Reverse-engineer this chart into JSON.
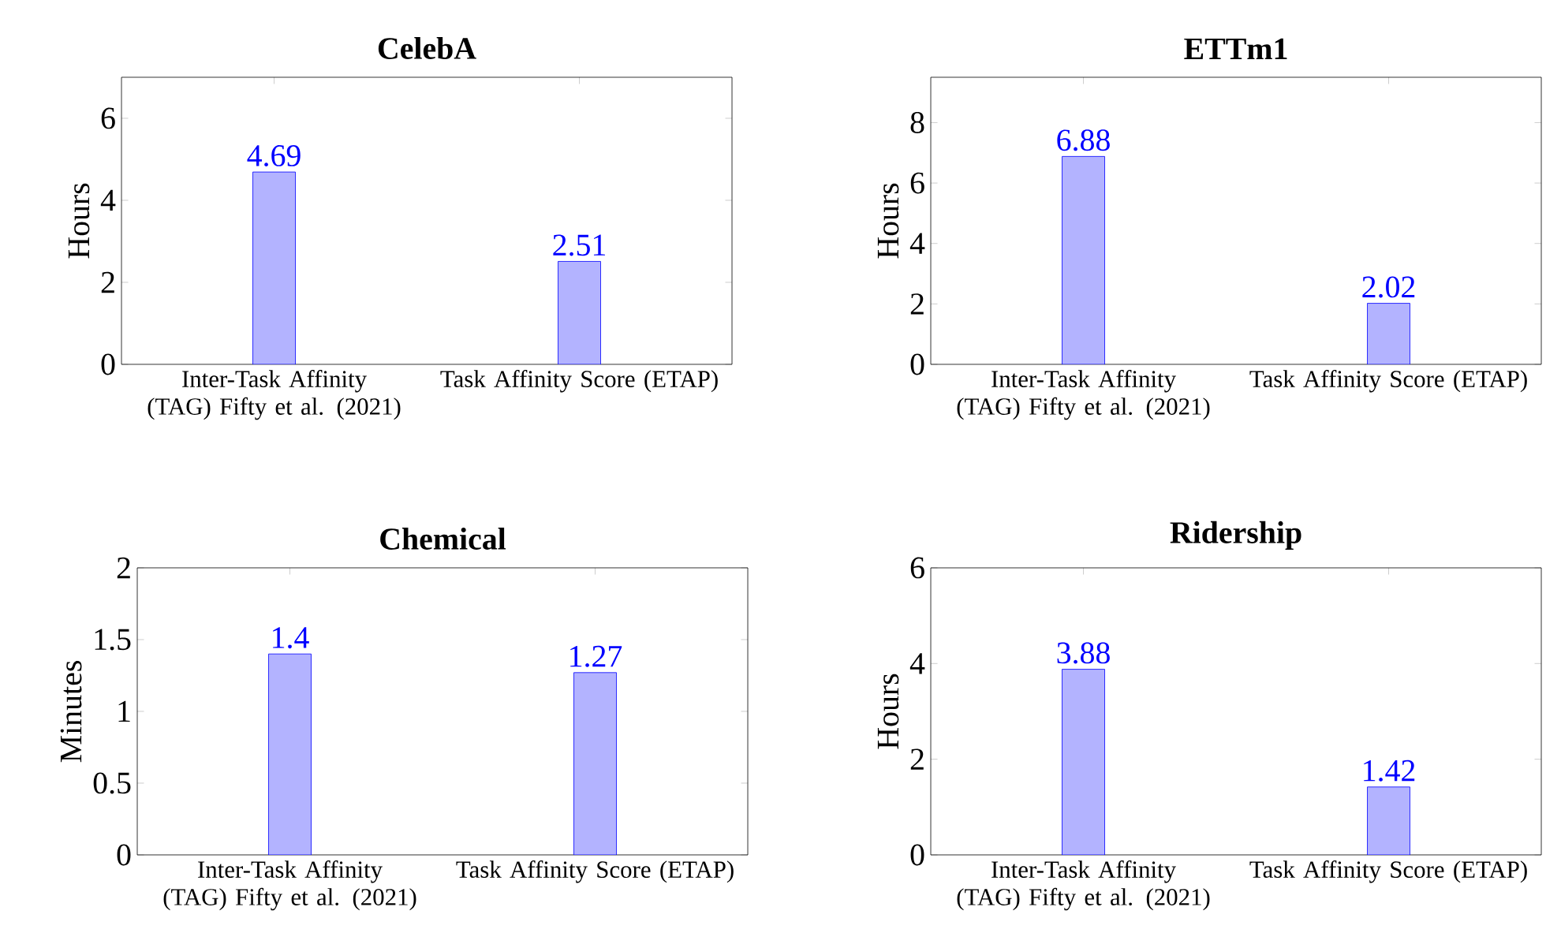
{
  "chart_data": [
    {
      "type": "bar",
      "title": "CelebA",
      "ylabel": "Hours",
      "categories": [
        "Inter-Task Affinity (TAG) Fifty et al. (2021)",
        "Task Affinity Score (ETAP)"
      ],
      "values": [
        4.69,
        2.51
      ],
      "color": "#b3b3ff",
      "ylim": [
        0,
        7
      ],
      "yticks": [
        0,
        2,
        4,
        6
      ],
      "data_labels": true
    },
    {
      "type": "bar",
      "title": "ETTm1",
      "ylabel": "Hours",
      "categories": [
        "Inter-Task Affinity (TAG) Fifty et al. (2021)",
        "Task Affinity Score (ETAP)"
      ],
      "values": [
        6.88,
        2.02
      ],
      "color": "#b3b3ff",
      "ylim": [
        0,
        9.5
      ],
      "yticks": [
        0,
        2,
        4,
        6,
        8
      ],
      "data_labels": true
    },
    {
      "type": "bar",
      "title": "Chemical",
      "ylabel": "Minutes",
      "categories": [
        "Inter-Task Affinity (TAG) Fifty et al. (2021)",
        "Task Affinity Score (ETAP)"
      ],
      "values": [
        1.4,
        1.27
      ],
      "color": "#b3b3ff",
      "ylim": [
        0,
        2
      ],
      "yticks": [
        0,
        0.5,
        1,
        1.5,
        2
      ],
      "data_labels": true
    },
    {
      "type": "bar",
      "title": "Ridership",
      "ylabel": "Hours",
      "categories": [
        "Inter-Task Affinity (TAG) Fifty et al. (2021)",
        "Task Affinity Score (ETAP)"
      ],
      "values": [
        3.88,
        1.42
      ],
      "color": "#b3b3ff",
      "ylim": [
        0,
        6
      ],
      "yticks": [
        0,
        2,
        4,
        6
      ],
      "data_labels": true
    }
  ]
}
